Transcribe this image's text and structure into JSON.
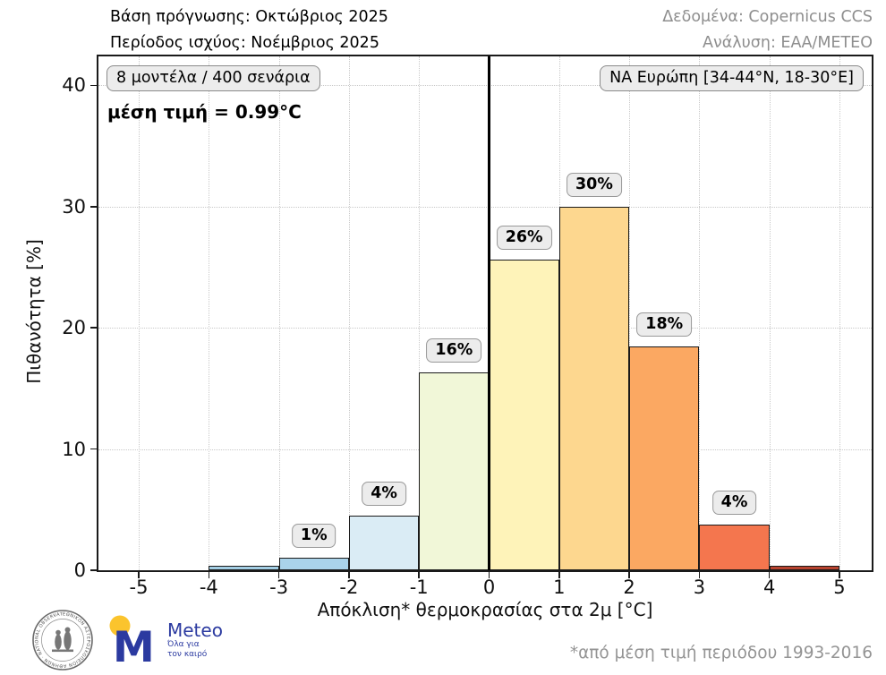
{
  "header": {
    "left_line1": "Βάση πρόγνωσης: Οκτώβριος 2025",
    "left_line2": "Περίοδος ισχύος: Νοέμβριος 2025",
    "right_line1": "Δεδομένα: Copernicus CCS",
    "right_line2": "Ανάλυση: ΕΑΑ/ΜΕΤΕΟ"
  },
  "annotations": {
    "models_box": "8 μοντέλα / 400 σενάρια",
    "mean_text": "μέση τιμή = 0.99°C",
    "region_box": "ΝΑ Ευρώπη [34-44°N, 18-30°E]"
  },
  "footnote": "*από μέση τιμή περιόδου 1993-2016",
  "logos": {
    "observatory_seal_text": "ΕΘΝΙΚΟΝ ΑΣΤΕΡΟΣΚΟΠΕΙΟΝ ΑΘΗΝΩΝ · NATIONAL OBSERVATORY OF ATHENS ·",
    "meteo_name": "Meteo",
    "meteo_tagline": "Όλα για\nτον καιρό"
  },
  "chart_data": {
    "type": "bar",
    "title": "",
    "xlabel": "Απόκλιση* θερμοκρασίας στα 2μ [°C]",
    "ylabel": "Πιθανότητα [%]",
    "bin_edges": [
      -4,
      -3,
      -2,
      -1,
      0,
      1,
      2,
      3,
      4,
      5
    ],
    "values": [
      0.35,
      1.0,
      4.5,
      16.3,
      25.6,
      30.0,
      18.5,
      3.8,
      0.35
    ],
    "bar_labels": [
      "",
      "1%",
      "4%",
      "16%",
      "26%",
      "30%",
      "18%",
      "4%",
      ""
    ],
    "bar_colors": [
      "#a3cee4",
      "#aad3ea",
      "#daecf5",
      "#f1f7d8",
      "#fef3b9",
      "#fdd78f",
      "#fba862",
      "#f4764e",
      "#b8432f"
    ],
    "xticks": [
      -5,
      -4,
      -3,
      -2,
      -1,
      0,
      1,
      2,
      3,
      4,
      5
    ],
    "yticks": [
      0,
      10,
      20,
      30,
      40
    ],
    "xlim": [
      -5.575,
      5.46
    ],
    "ylim": [
      0,
      42.4
    ],
    "grid": true,
    "legend": "none",
    "zero_line_x": 0,
    "mean_value_c": 0.99
  },
  "colors": {
    "bar_edge": "#1a1a1a",
    "grid": "#c9c9c9",
    "muted_text": "#8e8e8e",
    "annotation_bg": "#ececec",
    "annotation_border": "#8a8a8a",
    "meteo_blue": "#2b3aa0",
    "meteo_yellow": "#fbc42d",
    "seal_gray": "#6a6a6a"
  }
}
